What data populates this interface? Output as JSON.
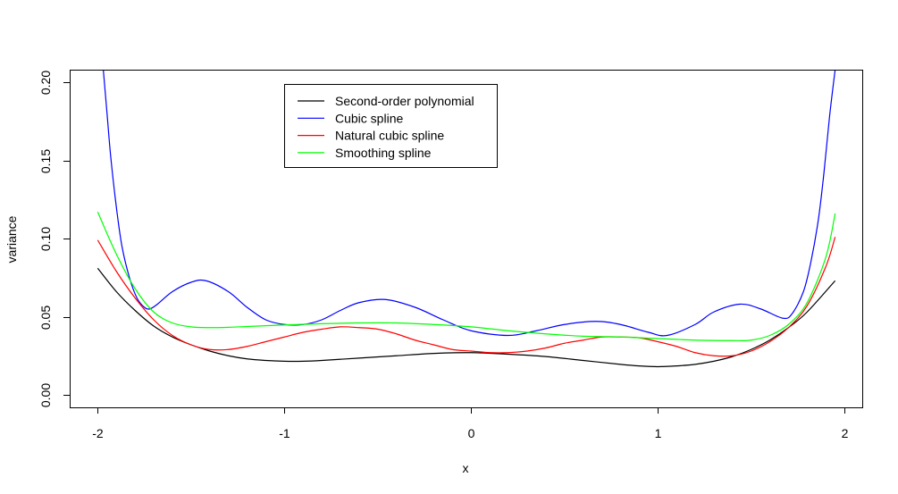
{
  "chart_data": {
    "type": "line",
    "xlabel": "x",
    "ylabel": "variance",
    "xlim": [
      -2.15,
      2.1
    ],
    "ylim": [
      -0.008,
      0.208
    ],
    "xticks": [
      -2,
      -1,
      0,
      1,
      2
    ],
    "xtick_labels": [
      "-2",
      "-1",
      "0",
      "1",
      "2"
    ],
    "yticks": [
      0,
      0.05,
      0.1,
      0.15,
      0.2
    ],
    "ytick_labels": [
      "0.00",
      "0.05",
      "0.10",
      "0.15",
      "0.20"
    ],
    "grid": false,
    "legend_position": "top-center",
    "series": [
      {
        "name": "Second-order polynomial",
        "color": "#000000",
        "x": [
          -2.0,
          -1.9,
          -1.8,
          -1.7,
          -1.6,
          -1.5,
          -1.4,
          -1.3,
          -1.2,
          -1.1,
          -1.0,
          -0.9,
          -0.8,
          -0.6,
          -0.4,
          -0.2,
          0.0,
          0.2,
          0.4,
          0.6,
          0.8,
          0.9,
          1.0,
          1.1,
          1.2,
          1.3,
          1.4,
          1.5,
          1.6,
          1.7,
          1.8,
          1.95
        ],
        "y": [
          0.081,
          0.066,
          0.054,
          0.044,
          0.037,
          0.032,
          0.028,
          0.025,
          0.023,
          0.022,
          0.0215,
          0.0215,
          0.022,
          0.0235,
          0.025,
          0.0265,
          0.027,
          0.026,
          0.0245,
          0.022,
          0.0195,
          0.0185,
          0.018,
          0.0185,
          0.0195,
          0.0215,
          0.0245,
          0.029,
          0.035,
          0.043,
          0.053,
          0.073
        ]
      },
      {
        "name": "Cubic spline",
        "color": "#0000ff",
        "x": [
          -1.97,
          -1.95,
          -1.93,
          -1.9,
          -1.87,
          -1.83,
          -1.79,
          -1.75,
          -1.72,
          -1.68,
          -1.6,
          -1.5,
          -1.42,
          -1.3,
          -1.2,
          -1.1,
          -1.0,
          -0.9,
          -0.8,
          -0.7,
          -0.6,
          -0.46,
          -0.3,
          -0.15,
          0.0,
          0.2,
          0.35,
          0.5,
          0.67,
          0.8,
          0.95,
          1.05,
          1.2,
          1.3,
          1.44,
          1.55,
          1.67,
          1.72,
          1.78,
          1.82,
          1.86,
          1.89,
          1.92,
          1.95
        ],
        "y": [
          0.208,
          0.18,
          0.152,
          0.12,
          0.095,
          0.075,
          0.062,
          0.056,
          0.055,
          0.058,
          0.066,
          0.072,
          0.073,
          0.066,
          0.056,
          0.048,
          0.045,
          0.045,
          0.048,
          0.054,
          0.059,
          0.061,
          0.056,
          0.048,
          0.041,
          0.038,
          0.041,
          0.045,
          0.047,
          0.045,
          0.04,
          0.038,
          0.045,
          0.053,
          0.058,
          0.055,
          0.049,
          0.052,
          0.066,
          0.085,
          0.112,
          0.142,
          0.178,
          0.208
        ]
      },
      {
        "name": "Natural cubic spline",
        "color": "#ff0000",
        "x": [
          -2.0,
          -1.9,
          -1.8,
          -1.7,
          -1.6,
          -1.5,
          -1.4,
          -1.3,
          -1.2,
          -1.1,
          -1.0,
          -0.9,
          -0.8,
          -0.7,
          -0.6,
          -0.5,
          -0.4,
          -0.3,
          -0.2,
          -0.1,
          0.0,
          0.1,
          0.2,
          0.3,
          0.4,
          0.5,
          0.6,
          0.7,
          0.8,
          0.9,
          1.0,
          1.1,
          1.2,
          1.3,
          1.4,
          1.5,
          1.6,
          1.7,
          1.8,
          1.9,
          1.95
        ],
        "y": [
          0.099,
          0.079,
          0.062,
          0.048,
          0.038,
          0.032,
          0.029,
          0.029,
          0.031,
          0.034,
          0.037,
          0.04,
          0.042,
          0.0435,
          0.043,
          0.042,
          0.039,
          0.035,
          0.032,
          0.029,
          0.028,
          0.027,
          0.027,
          0.028,
          0.03,
          0.033,
          0.035,
          0.037,
          0.037,
          0.0365,
          0.034,
          0.031,
          0.027,
          0.025,
          0.025,
          0.028,
          0.034,
          0.043,
          0.057,
          0.082,
          0.101
        ]
      },
      {
        "name": "Smoothing spline",
        "color": "#00ff00",
        "x": [
          -2.0,
          -1.9,
          -1.8,
          -1.7,
          -1.6,
          -1.5,
          -1.4,
          -1.3,
          -1.2,
          -1.0,
          -0.8,
          -0.6,
          -0.4,
          -0.2,
          0.0,
          0.2,
          0.4,
          0.6,
          0.8,
          1.0,
          1.2,
          1.4,
          1.5,
          1.6,
          1.7,
          1.8,
          1.9,
          1.95
        ],
        "y": [
          0.117,
          0.09,
          0.068,
          0.053,
          0.046,
          0.0435,
          0.043,
          0.0432,
          0.0437,
          0.0447,
          0.0455,
          0.046,
          0.046,
          0.045,
          0.0435,
          0.041,
          0.039,
          0.0375,
          0.037,
          0.036,
          0.035,
          0.0347,
          0.035,
          0.038,
          0.045,
          0.059,
          0.088,
          0.116
        ]
      }
    ]
  }
}
